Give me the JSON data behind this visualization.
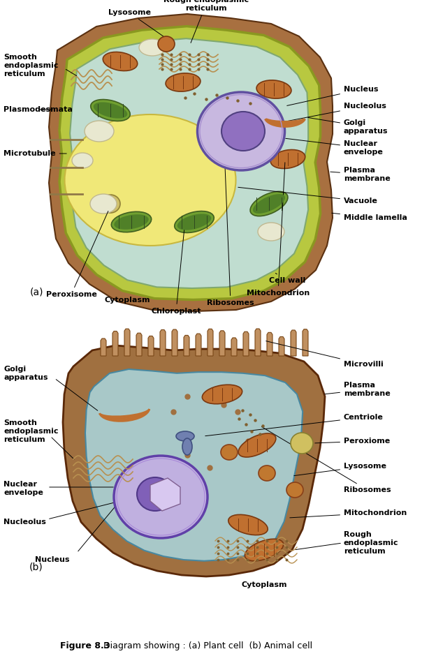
{
  "title": "Diagram showing : (a) Plant cell  (b) Animal cell",
  "figure_label": "Figure 8.3",
  "bg_color": "#ffffff",
  "label_fontsize": 8.0,
  "caption_fontsize": 9.0,
  "plant_cell": {
    "panel_label": "(a)",
    "outer_color": "#a87040",
    "wall_color": "#c8b040",
    "membrane_color": "#90b830",
    "cytoplasm_color": "#c0ddd0",
    "vacuole_color": "#f0e880",
    "nucleus_fill": "#c8b8e0",
    "nucleus_edge": "#6050a0",
    "nucleolus_fill": "#9070c0",
    "chloroplast_fill": "#70a030",
    "mito_fill": "#c07030",
    "er_color": "#b89050",
    "golgi_color": "#c07030"
  },
  "animal_cell": {
    "panel_label": "(b)",
    "outer_color": "#a07040",
    "cytoplasm_color": "#a8c8c8",
    "nucleus_fill": "#c0b0e0",
    "nucleolus_fill": "#8060b8",
    "mito_fill": "#c07030",
    "er_color": "#b89050",
    "golgi_color": "#c07030",
    "microvilli_color": "#c09060",
    "lysosome_color": "#c07830",
    "peroxisome_color": "#d0c060",
    "centriole_color": "#7080b0"
  }
}
